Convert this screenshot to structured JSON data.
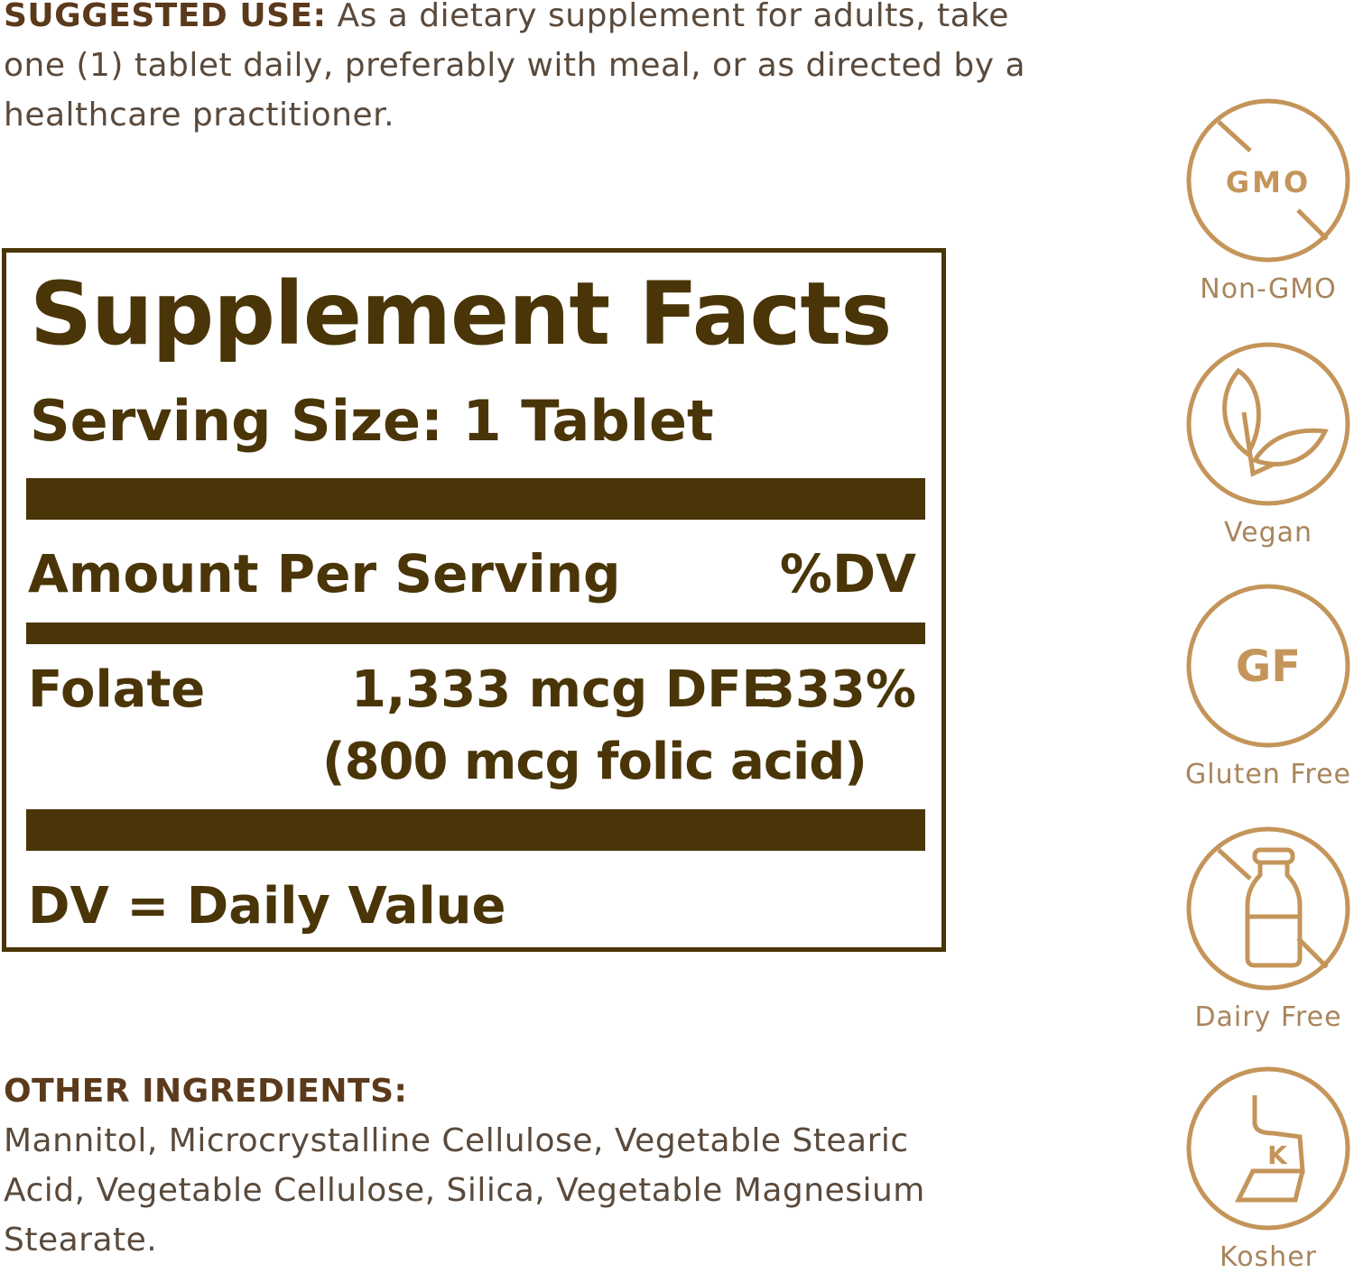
{
  "suggested_use": {
    "heading": "SUGGESTED USE:",
    "text": " As a dietary supplement for adults, take one (1) tablet daily, preferably with meal, or as directed by a healthcare practitioner."
  },
  "facts": {
    "title": "Supplement Facts",
    "serving_size": "Serving Size: 1 Tablet",
    "amount_header": "Amount Per Serving",
    "dv_header": "%DV",
    "rows": [
      {
        "name": "Folate",
        "amount": "1,333 mcg DFE",
        "dv": "333%",
        "note": "(800 mcg folic acid)"
      }
    ],
    "footnote": "DV = Daily Value"
  },
  "other_ingredients": {
    "heading": "OTHER INGREDIENTS:",
    "text": "Mannitol, Microcrystalline Cellulose, Vegetable Stearic Acid, Vegetable Cellulose, Silica, Vegetable Magnesium Stearate."
  },
  "badges": [
    {
      "icon": "no-gmo-icon",
      "icon_text": "GMO",
      "label": "Non-GMO"
    },
    {
      "icon": "leaf-icon",
      "label": "Vegan"
    },
    {
      "icon": "gluten-free-icon",
      "icon_text": "GF",
      "label": "Gluten Free"
    },
    {
      "icon": "no-milk-bottle-icon",
      "label": "Dairy Free"
    },
    {
      "icon": "kosher-icon",
      "icon_text": "K",
      "label": "Kosher"
    }
  ],
  "colors": {
    "label_brown": "#4a3508",
    "icon_tan": "#c4955a",
    "heading": "#5b3a1c"
  }
}
